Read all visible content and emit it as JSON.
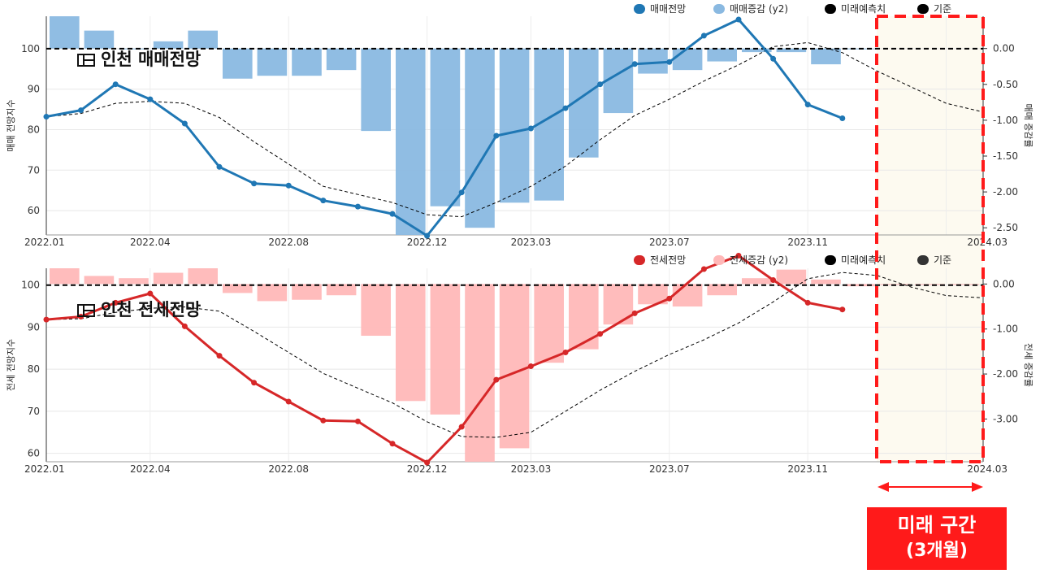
{
  "colors": {
    "sales_line": "#1f77b4",
    "sales_bar": "#8ab9e1",
    "jeonse_line": "#d62728",
    "jeonse_bar": "#ffb8b8",
    "future_fill": "#fdfaf0",
    "future_border": "#ff1a1a",
    "reference_line": "#000000",
    "forecast_line": "#000000"
  },
  "future_annotation": {
    "line1": "미래 구간",
    "line2": "(3개월)"
  },
  "chart_data": [
    {
      "type": "line",
      "title": "인천 매매전망",
      "ylabel": "매매 전망지수",
      "y2label": "매매 증감률",
      "ylim": [
        54,
        108
      ],
      "y2lim": [
        -2.6,
        0.45
      ],
      "yticks": [
        60,
        70,
        80,
        90,
        100
      ],
      "y2ticks": [
        "0.00",
        "-0.50",
        "-1.00",
        "-1.50",
        "-2.00",
        "-2.50"
      ],
      "xticks": [
        "2022.01",
        "2022.04",
        "2022.08",
        "2022.12",
        "2023.03",
        "2023.07",
        "2023.11",
        "2024.03"
      ],
      "grid": true,
      "legend": [
        "매매전망",
        "매매증감 (y2)",
        "미래예측치",
        "기준"
      ],
      "reference": 100,
      "series": [
        {
          "name": "매매전망",
          "kind": "line",
          "axis": "y",
          "values": [
            83.2,
            84.8,
            91.2,
            87.5,
            81.5,
            70.8,
            66.7,
            66.2,
            62.5,
            61.0,
            59.2,
            53.8,
            64.5,
            78.5,
            80.3,
            85.3,
            91.2,
            96.2,
            96.7,
            103.2,
            107.2,
            97.5,
            86.2,
            82.8
          ]
        },
        {
          "name": "매매증감 (y2)",
          "kind": "bar",
          "axis": "y2",
          "values": [
            0.45,
            0.25,
            0.0,
            0.1,
            0.25,
            -0.42,
            -0.38,
            -0.38,
            -0.3,
            -1.15,
            -2.6,
            -2.2,
            -2.5,
            -2.15,
            -2.12,
            -1.52,
            -0.9,
            -0.35,
            -0.3,
            -0.18,
            -0.05,
            -0.05,
            -0.22,
            0.0
          ]
        },
        {
          "name": "미래예측치",
          "kind": "dashed",
          "axis": "y",
          "values": [
            83.2,
            84.0,
            86.5,
            87.0,
            86.5,
            83.0,
            77.0,
            71.5,
            66.0,
            64.0,
            62.0,
            59.0,
            58.5,
            62.0,
            66.0,
            71.0,
            77.5,
            83.5,
            87.5,
            92.0,
            96.0,
            100.5,
            101.5,
            99.0,
            94.5,
            90.5,
            86.5,
            84.5
          ]
        }
      ]
    },
    {
      "type": "line",
      "title": "인천 전세전망",
      "ylabel": "전세 전망지수",
      "y2label": "전세 증감률",
      "ylim": [
        58,
        104
      ],
      "y2lim": [
        -3.95,
        0.35
      ],
      "yticks": [
        60,
        70,
        80,
        90,
        100
      ],
      "y2ticks": [
        "0.00",
        "-1.00",
        "-2.00",
        "-3.00"
      ],
      "xticks": [
        "2022.01",
        "2022.04",
        "2022.08",
        "2022.12",
        "2023.03",
        "2023.07",
        "2023.11",
        "2024.03"
      ],
      "grid": true,
      "legend": [
        "전세전망",
        "전세증감 (y2)",
        "미래예측치",
        "기준"
      ],
      "reference": 100,
      "series": [
        {
          "name": "전세전망",
          "kind": "line",
          "axis": "y",
          "values": [
            91.8,
            92.5,
            95.8,
            98.0,
            90.2,
            83.2,
            76.8,
            72.3,
            67.8,
            67.6,
            62.3,
            57.8,
            66.3,
            77.5,
            80.7,
            84.0,
            88.4,
            93.3,
            96.8,
            103.8,
            107.0,
            101.2,
            95.8,
            94.2
          ]
        },
        {
          "name": "전세증감 (y2)",
          "kind": "bar",
          "axis": "y2",
          "values": [
            0.35,
            0.18,
            0.13,
            0.25,
            0.35,
            -0.2,
            -0.38,
            -0.35,
            -0.25,
            -1.15,
            -2.6,
            -2.9,
            -3.95,
            -3.65,
            -1.75,
            -1.45,
            -0.9,
            -0.45,
            -0.5,
            -0.25,
            0.13,
            0.32,
            0.1,
            -0.05,
            -0.02,
            -0.02,
            -0.02
          ]
        },
        {
          "name": "미래예측치",
          "kind": "dashed",
          "axis": "y",
          "values": [
            91.8,
            92.0,
            93.5,
            94.5,
            94.8,
            93.8,
            89.0,
            84.0,
            79.0,
            75.5,
            72.0,
            67.5,
            64.0,
            63.8,
            65.0,
            70.0,
            75.0,
            79.5,
            83.5,
            87.0,
            91.0,
            96.0,
            101.5,
            103.0,
            102.3,
            99.5,
            97.5,
            97.0
          ]
        }
      ]
    }
  ]
}
